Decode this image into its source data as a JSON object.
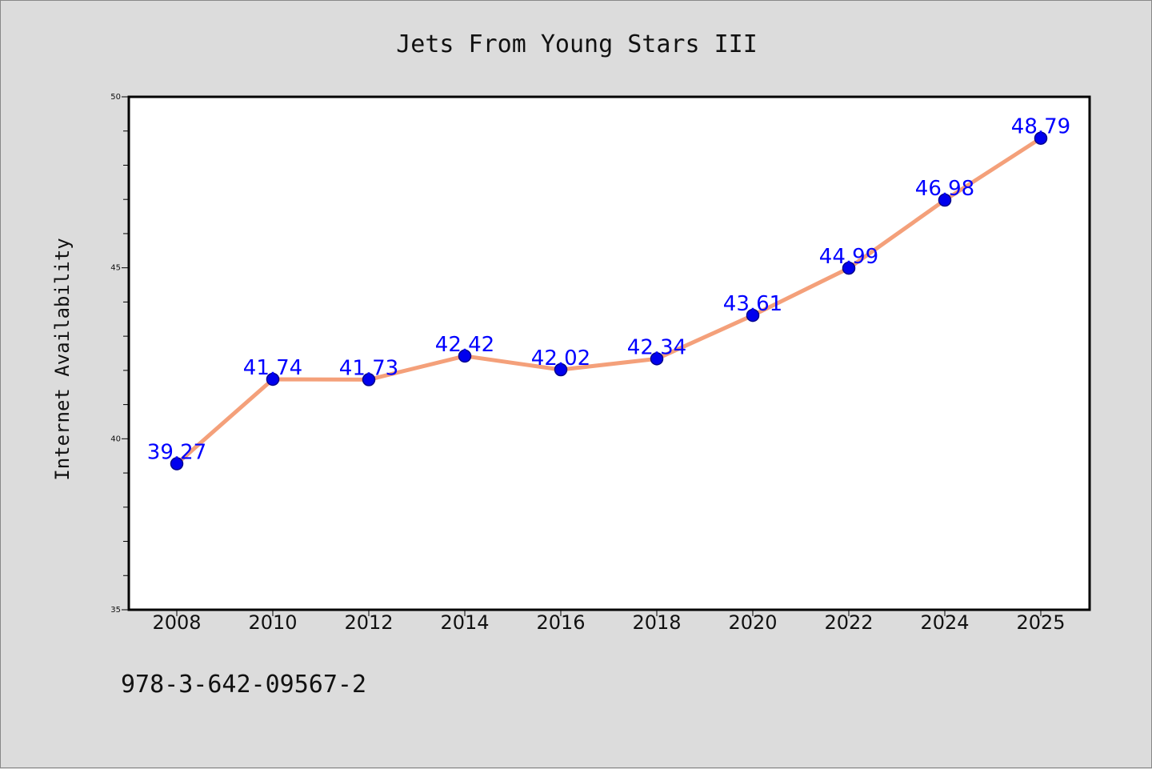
{
  "chart_data": {
    "type": "line",
    "title": "Jets From Young Stars III",
    "xlabel": "",
    "ylabel": "Internet Availability",
    "categories": [
      "2008",
      "2010",
      "2012",
      "2014",
      "2016",
      "2018",
      "2020",
      "2022",
      "2024",
      "2025"
    ],
    "series": [
      {
        "values": [
          39.27,
          41.74,
          41.73,
          42.42,
          42.02,
          42.34,
          43.61,
          44.99,
          46.98,
          48.79
        ],
        "line_color": "#f4a07a",
        "marker_color": "#0000ee",
        "marker_edge": "#00008b"
      }
    ],
    "data_labels": [
      "39.27",
      "41.74",
      "41.73",
      "42.42",
      "42.02",
      "42.34",
      "43.61",
      "44.99",
      "46.98",
      "48.79"
    ],
    "label_color": "#0000ff",
    "ylim": [
      35,
      50
    ],
    "yticks": [
      "35",
      "40",
      "45",
      "50"
    ],
    "grid": false,
    "legend": "none"
  },
  "footer": {
    "isbn": "978-3-642-09567-2"
  }
}
